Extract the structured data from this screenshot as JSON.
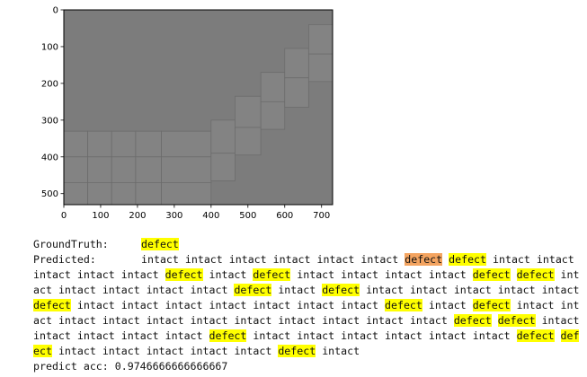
{
  "chart_data": {
    "type": "image",
    "xlim": [
      0,
      730
    ],
    "ylim": [
      530,
      0
    ],
    "xticks": [
      0,
      100,
      200,
      300,
      400,
      500,
      600,
      700
    ],
    "yticks": [
      0,
      100,
      200,
      300,
      400,
      500
    ],
    "tick_labels_x": [
      "0",
      "100",
      "200",
      "300",
      "400",
      "500",
      "600",
      "700"
    ],
    "tick_labels_y": [
      "0",
      "100",
      "200",
      "300",
      "400",
      "500"
    ],
    "background_color": "#7c7c7c",
    "lighter_region_color": "#838383",
    "grid_line_color": "#6c6c6c",
    "cells": [
      {
        "x0": 0,
        "y0": 330,
        "x1": 65,
        "y1": 400
      },
      {
        "x0": 65,
        "y0": 330,
        "x1": 130,
        "y1": 400
      },
      {
        "x0": 130,
        "y0": 330,
        "x1": 195,
        "y1": 400
      },
      {
        "x0": 195,
        "y0": 330,
        "x1": 265,
        "y1": 400
      },
      {
        "x0": 265,
        "y0": 330,
        "x1": 400,
        "y1": 400
      },
      {
        "x0": 0,
        "y0": 400,
        "x1": 65,
        "y1": 470
      },
      {
        "x0": 65,
        "y0": 400,
        "x1": 130,
        "y1": 470
      },
      {
        "x0": 130,
        "y0": 400,
        "x1": 195,
        "y1": 470
      },
      {
        "x0": 195,
        "y0": 400,
        "x1": 265,
        "y1": 470
      },
      {
        "x0": 265,
        "y0": 400,
        "x1": 400,
        "y1": 470
      },
      {
        "x0": 0,
        "y0": 470,
        "x1": 65,
        "y1": 530
      },
      {
        "x0": 65,
        "y0": 470,
        "x1": 130,
        "y1": 530
      },
      {
        "x0": 130,
        "y0": 470,
        "x1": 195,
        "y1": 530
      },
      {
        "x0": 195,
        "y0": 470,
        "x1": 265,
        "y1": 530
      },
      {
        "x0": 265,
        "y0": 470,
        "x1": 400,
        "y1": 530
      },
      {
        "x0": 400,
        "y0": 300,
        "x1": 465,
        "y1": 390
      },
      {
        "x0": 400,
        "y0": 390,
        "x1": 465,
        "y1": 465
      },
      {
        "x0": 465,
        "y0": 235,
        "x1": 535,
        "y1": 320
      },
      {
        "x0": 465,
        "y0": 320,
        "x1": 535,
        "y1": 395
      },
      {
        "x0": 535,
        "y0": 170,
        "x1": 600,
        "y1": 250
      },
      {
        "x0": 535,
        "y0": 250,
        "x1": 600,
        "y1": 325
      },
      {
        "x0": 600,
        "y0": 105,
        "x1": 665,
        "y1": 185
      },
      {
        "x0": 600,
        "y0": 185,
        "x1": 665,
        "y1": 265
      },
      {
        "x0": 665,
        "y0": 40,
        "x1": 730,
        "y1": 120
      },
      {
        "x0": 665,
        "y0": 120,
        "x1": 730,
        "y1": 195
      }
    ]
  },
  "output": {
    "ground_truth_label": "GroundTruth:",
    "ground_truth_value": "defect",
    "predicted_label": "Predicted:",
    "predicted_tokens": [
      {
        "t": "intact",
        "c": "n"
      },
      {
        "t": "intact",
        "c": "n"
      },
      {
        "t": "intact",
        "c": "n"
      },
      {
        "t": "intact",
        "c": "n"
      },
      {
        "t": "intact",
        "c": "n"
      },
      {
        "t": "intact",
        "c": "n"
      },
      {
        "t": "defect",
        "c": "w"
      },
      {
        "t": "defect",
        "c": "d"
      },
      {
        "t": "intact",
        "c": "n"
      },
      {
        "t": "intact",
        "c": "n"
      },
      {
        "t": "intact",
        "c": "n"
      },
      {
        "t": "intact",
        "c": "n"
      },
      {
        "t": "intact",
        "c": "n"
      },
      {
        "t": "defect",
        "c": "d"
      },
      {
        "t": "intact",
        "c": "n"
      },
      {
        "t": "defect",
        "c": "d"
      },
      {
        "t": "intact",
        "c": "n"
      },
      {
        "t": "intact",
        "c": "n"
      },
      {
        "t": "intact",
        "c": "n"
      },
      {
        "t": "intact",
        "c": "n"
      },
      {
        "t": "defect",
        "c": "d"
      },
      {
        "t": "defect",
        "c": "d"
      },
      {
        "t": "intact",
        "c": "n"
      },
      {
        "t": "intact",
        "c": "n"
      },
      {
        "t": "intact",
        "c": "n"
      },
      {
        "t": "intact",
        "c": "n"
      },
      {
        "t": "intact",
        "c": "n"
      },
      {
        "t": "defect",
        "c": "d"
      },
      {
        "t": "intact",
        "c": "n"
      },
      {
        "t": "defect",
        "c": "d"
      },
      {
        "t": "intact",
        "c": "n"
      },
      {
        "t": "intact",
        "c": "n"
      },
      {
        "t": "intact",
        "c": "n"
      },
      {
        "t": "intact",
        "c": "n"
      },
      {
        "t": "intact",
        "c": "n"
      },
      {
        "t": "defect",
        "c": "d"
      },
      {
        "t": "intact",
        "c": "n"
      },
      {
        "t": "intact",
        "c": "n"
      },
      {
        "t": "intact",
        "c": "n"
      },
      {
        "t": "intact",
        "c": "n"
      },
      {
        "t": "intact",
        "c": "n"
      },
      {
        "t": "intact",
        "c": "n"
      },
      {
        "t": "intact",
        "c": "n"
      },
      {
        "t": "defect",
        "c": "d"
      },
      {
        "t": "intact",
        "c": "n"
      },
      {
        "t": "defect",
        "c": "d"
      },
      {
        "t": "intact",
        "c": "n"
      },
      {
        "t": "intact",
        "c": "n"
      },
      {
        "t": "intact",
        "c": "n"
      },
      {
        "t": "intact",
        "c": "n"
      },
      {
        "t": "intact",
        "c": "n"
      },
      {
        "t": "intact",
        "c": "n"
      },
      {
        "t": "intact",
        "c": "n"
      },
      {
        "t": "intact",
        "c": "n"
      },
      {
        "t": "intact",
        "c": "n"
      },
      {
        "t": "intact",
        "c": "n"
      },
      {
        "t": "intact",
        "c": "n"
      },
      {
        "t": "defect",
        "c": "d"
      },
      {
        "t": "defect",
        "c": "d"
      },
      {
        "t": "intact",
        "c": "n"
      },
      {
        "t": "intact",
        "c": "n"
      },
      {
        "t": "intact",
        "c": "n"
      },
      {
        "t": "intact",
        "c": "n"
      },
      {
        "t": "intact",
        "c": "n"
      },
      {
        "t": "defect",
        "c": "d"
      },
      {
        "t": "intact",
        "c": "n"
      },
      {
        "t": "intact",
        "c": "n"
      },
      {
        "t": "intact",
        "c": "n"
      },
      {
        "t": "intact",
        "c": "n"
      },
      {
        "t": "intact",
        "c": "n"
      },
      {
        "t": "intact",
        "c": "n"
      },
      {
        "t": "defect",
        "c": "d"
      },
      {
        "t": "defect",
        "c": "d"
      },
      {
        "t": "intact",
        "c": "n"
      },
      {
        "t": "intact",
        "c": "n"
      },
      {
        "t": "intact",
        "c": "n"
      },
      {
        "t": "intact",
        "c": "n"
      },
      {
        "t": "intact",
        "c": "n"
      },
      {
        "t": "defect",
        "c": "d"
      },
      {
        "t": "intact",
        "c": "n"
      }
    ],
    "accuracy_label": "predict acc:",
    "accuracy_value": "0.9746666666666667"
  },
  "colors": {
    "defect_highlight": "#ffff00",
    "wrong_highlight": "#f4a460"
  }
}
